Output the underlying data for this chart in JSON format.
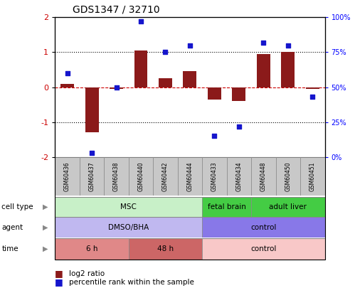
{
  "title": "GDS1347 / 32710",
  "samples": [
    "GSM60436",
    "GSM60437",
    "GSM60438",
    "GSM60440",
    "GSM60442",
    "GSM60444",
    "GSM60433",
    "GSM60434",
    "GSM60448",
    "GSM60450",
    "GSM60451"
  ],
  "log2_ratio": [
    0.1,
    -1.3,
    -0.05,
    1.05,
    0.25,
    0.45,
    -0.35,
    -0.4,
    0.95,
    1.0,
    -0.05
  ],
  "percentile_rank": [
    60,
    3,
    50,
    97,
    75,
    80,
    15,
    22,
    82,
    80,
    43
  ],
  "ylim_left": [
    -2,
    2
  ],
  "ylim_right": [
    0,
    100
  ],
  "bar_color": "#8B1A1A",
  "dot_color": "#1515CC",
  "zero_line_color": "#CC0000",
  "cell_type_groups": [
    {
      "label": "MSC",
      "start": 0,
      "end": 5,
      "color": "#C8F0C8"
    },
    {
      "label": "fetal brain",
      "start": 6,
      "end": 7,
      "color": "#44CC44"
    },
    {
      "label": "adult liver",
      "start": 8,
      "end": 10,
      "color": "#44CC44"
    }
  ],
  "agent_groups": [
    {
      "label": "DMSO/BHA",
      "start": 0,
      "end": 5,
      "color": "#C0B8F0"
    },
    {
      "label": "control",
      "start": 6,
      "end": 10,
      "color": "#8878E8"
    }
  ],
  "time_groups": [
    {
      "label": "6 h",
      "start": 0,
      "end": 2,
      "color": "#E08888"
    },
    {
      "label": "48 h",
      "start": 3,
      "end": 5,
      "color": "#CC6666"
    },
    {
      "label": "control",
      "start": 6,
      "end": 10,
      "color": "#F8C8C8"
    }
  ],
  "row_labels": [
    "cell type",
    "agent",
    "time"
  ],
  "legend_bar_label": "log2 ratio",
  "legend_dot_label": "percentile rank within the sample"
}
